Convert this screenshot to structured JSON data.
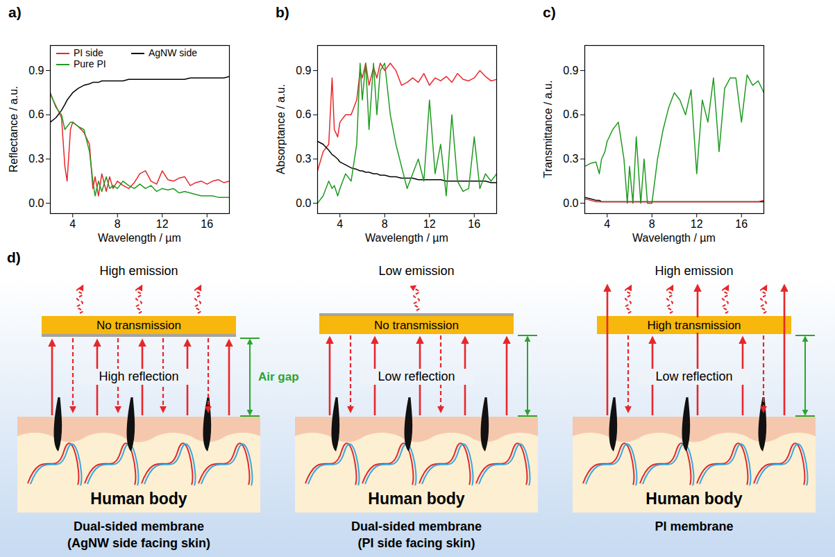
{
  "chart_data": [
    {
      "panel": "a)",
      "type": "line",
      "xlabel": "Wavelength / µm",
      "ylabel": "Reflectance / a.u.",
      "x": [
        2,
        2.5,
        3,
        3.3,
        3.5,
        3.8,
        4,
        4.5,
        5,
        5.5,
        5.8,
        6,
        6.3,
        6.6,
        7,
        7.3,
        7.6,
        8,
        8.5,
        9,
        9.5,
        10,
        10.5,
        11,
        11.5,
        12,
        12.5,
        13,
        13.5,
        14,
        14.5,
        15,
        15.5,
        16,
        16.5,
        17,
        17.5,
        18
      ],
      "series": [
        {
          "name": "PI side",
          "color": "#e8262a",
          "values": [
            0.74,
            0.66,
            0.58,
            0.25,
            0.15,
            0.5,
            0.55,
            0.52,
            0.48,
            0.4,
            0.1,
            0.18,
            0.05,
            0.2,
            0.08,
            0.18,
            0.1,
            0.15,
            0.12,
            0.1,
            0.14,
            0.2,
            0.22,
            0.15,
            0.13,
            0.22,
            0.16,
            0.15,
            0.17,
            0.18,
            0.12,
            0.14,
            0.15,
            0.13,
            0.15,
            0.16,
            0.14,
            0.15
          ]
        },
        {
          "name": "AgNW side",
          "color": "#000000",
          "values": [
            0.55,
            0.58,
            0.63,
            0.67,
            0.7,
            0.73,
            0.75,
            0.78,
            0.8,
            0.81,
            0.82,
            0.82,
            0.82,
            0.83,
            0.83,
            0.83,
            0.83,
            0.83,
            0.83,
            0.84,
            0.84,
            0.84,
            0.84,
            0.84,
            0.84,
            0.84,
            0.84,
            0.84,
            0.84,
            0.84,
            0.85,
            0.85,
            0.85,
            0.85,
            0.85,
            0.85,
            0.85,
            0.86
          ]
        },
        {
          "name": "Pure PI",
          "color": "#1f9a1f",
          "values": [
            0.75,
            0.65,
            0.6,
            0.5,
            0.52,
            0.55,
            0.55,
            0.52,
            0.5,
            0.35,
            0.15,
            0.05,
            0.15,
            0.08,
            0.18,
            0.1,
            0.12,
            0.1,
            0.15,
            0.12,
            0.1,
            0.13,
            0.1,
            0.12,
            0.08,
            0.1,
            0.09,
            0.1,
            0.07,
            0.08,
            0.07,
            0.06,
            0.05,
            0.05,
            0.05,
            0.04,
            0.04,
            0.04
          ]
        }
      ],
      "xlim": [
        2,
        18
      ],
      "ylim": [
        -0.07,
        1.07
      ],
      "xticks": [
        4,
        8,
        12,
        16
      ],
      "yticks": [
        {
          "value": 0,
          "label": "0.0"
        },
        0.3,
        0.6,
        0.9
      ],
      "legend": "upper left"
    },
    {
      "panel": "b)",
      "type": "line",
      "xlabel": "Wavelength / µm",
      "ylabel": "Absorptance / a.u.",
      "x": [
        2,
        2.5,
        3,
        3.3,
        3.5,
        3.8,
        4,
        4.5,
        5,
        5.5,
        5.8,
        6,
        6.3,
        6.6,
        7,
        7.3,
        7.6,
        8,
        8.5,
        9,
        9.5,
        10,
        10.5,
        11,
        11.5,
        12,
        12.5,
        13,
        13.5,
        14,
        14.5,
        15,
        15.5,
        16,
        16.5,
        17,
        17.5,
        18
      ],
      "series": [
        {
          "color": "#e8262a",
          "values": [
            0.22,
            0.35,
            0.4,
            0.85,
            0.5,
            0.45,
            0.55,
            0.6,
            0.6,
            0.7,
            0.9,
            0.85,
            0.95,
            0.8,
            0.92,
            0.85,
            0.95,
            0.9,
            0.95,
            0.9,
            0.8,
            0.82,
            0.85,
            0.82,
            0.88,
            0.8,
            0.85,
            0.83,
            0.86,
            0.82,
            0.88,
            0.84,
            0.83,
            0.85,
            0.9,
            0.86,
            0.83,
            0.84
          ]
        },
        {
          "color": "#000000",
          "values": [
            0.42,
            0.4,
            0.36,
            0.33,
            0.32,
            0.3,
            0.28,
            0.26,
            0.24,
            0.23,
            0.22,
            0.22,
            0.21,
            0.21,
            0.2,
            0.2,
            0.19,
            0.19,
            0.18,
            0.18,
            0.17,
            0.17,
            0.17,
            0.16,
            0.16,
            0.16,
            0.16,
            0.16,
            0.15,
            0.15,
            0.15,
            0.15,
            0.15,
            0.15,
            0.15,
            0.15,
            0.14,
            0.14
          ]
        },
        {
          "color": "#1f9a1f",
          "values": [
            0,
            0.05,
            0.15,
            0.1,
            0.12,
            0.05,
            0.1,
            0.2,
            0.15,
            0.4,
            0.95,
            0.7,
            0.95,
            0.5,
            0.95,
            0.6,
            0.9,
            0.95,
            0.6,
            0.4,
            0.25,
            0.1,
            0.2,
            0.3,
            0.15,
            0.7,
            0.2,
            0.4,
            0.05,
            0.6,
            0.15,
            0.08,
            0.1,
            0.45,
            0.1,
            0.2,
            0.15,
            0.2
          ]
        }
      ],
      "xlim": [
        2,
        18
      ],
      "ylim": [
        -0.07,
        1.07
      ],
      "xticks": [
        4,
        8,
        12,
        16
      ],
      "yticks": [
        {
          "value": 0,
          "label": "0.0"
        },
        0.3,
        0.6,
        0.9
      ]
    },
    {
      "panel": "c)",
      "type": "line",
      "xlabel": "Wavelength / µm",
      "ylabel": "Transmittance / a.u.",
      "x": [
        2,
        2.5,
        3,
        3.3,
        3.5,
        3.8,
        4,
        4.5,
        5,
        5.5,
        5.8,
        6,
        6.3,
        6.6,
        7,
        7.3,
        7.6,
        8,
        8.5,
        9,
        9.5,
        10,
        10.5,
        11,
        11.5,
        12,
        12.5,
        13,
        13.5,
        14,
        14.5,
        15,
        15.5,
        16,
        16.5,
        17,
        17.5,
        18
      ],
      "series": [
        {
          "color": "#1f9a1f",
          "values": [
            0.25,
            0.27,
            0.28,
            0.2,
            0.3,
            0.35,
            0.42,
            0.5,
            0.55,
            0.3,
            0,
            0.25,
            0,
            0.45,
            0,
            0.3,
            0,
            0,
            0.3,
            0.5,
            0.65,
            0.75,
            0.7,
            0.6,
            0.77,
            0.2,
            0.7,
            0.55,
            0.85,
            0.35,
            0.78,
            0.85,
            0.85,
            0.55,
            0.87,
            0.8,
            0.83,
            0.75
          ]
        },
        {
          "color": "#000000",
          "values": [
            0.04,
            0.03,
            0.02,
            0.02,
            0.01,
            0.01,
            0.01,
            0.01,
            0.01,
            0.01,
            0.01,
            0.01,
            0.01,
            0.01,
            0.01,
            0.01,
            0.01,
            0.01,
            0.01,
            0.01,
            0.01,
            0.01,
            0.01,
            0.01,
            0.01,
            0.01,
            0.01,
            0.01,
            0.01,
            0.01,
            0.01,
            0.01,
            0.01,
            0.01,
            0.01,
            0.01,
            0.01,
            0.01
          ]
        },
        {
          "color": "#e8262a",
          "values": [
            0.03,
            0.02,
            0.01,
            0.01,
            0.01,
            0.01,
            0.01,
            0.01,
            0.01,
            0.01,
            0.01,
            0.01,
            0.01,
            0.01,
            0.01,
            0.01,
            0.01,
            0.01,
            0.01,
            0.01,
            0.01,
            0.01,
            0.01,
            0.01,
            0.01,
            0.01,
            0.01,
            0.01,
            0.01,
            0.01,
            0.01,
            0.01,
            0.01,
            0.01,
            0.01,
            0.01,
            0.01,
            0.02
          ]
        }
      ],
      "xlim": [
        2,
        18
      ],
      "ylim": [
        -0.07,
        1.07
      ],
      "xticks": [
        4,
        8,
        12,
        16
      ],
      "yticks": [
        {
          "value": 0,
          "label": "0.0"
        },
        0.3,
        0.6,
        0.9
      ]
    }
  ],
  "diagram": {
    "panel": "d)",
    "panels": [
      {
        "top": "High emission",
        "membrane": "No transmission",
        "gap": "High reflection",
        "gap_label": "Air gap",
        "body": "Human body",
        "caption": [
          "Dual-sided membrane",
          "(AgNW side facing skin)"
        ]
      },
      {
        "top": "Low emission",
        "membrane": "No transmission",
        "gap": "Low reflection",
        "body": "Human body",
        "caption": [
          "Dual-sided membrane",
          "(PI side facing skin)"
        ]
      },
      {
        "top": "High emission",
        "membrane": "High transmission",
        "gap": "Low reflection",
        "body": "Human body",
        "caption": [
          "PI membrane"
        ]
      }
    ]
  }
}
